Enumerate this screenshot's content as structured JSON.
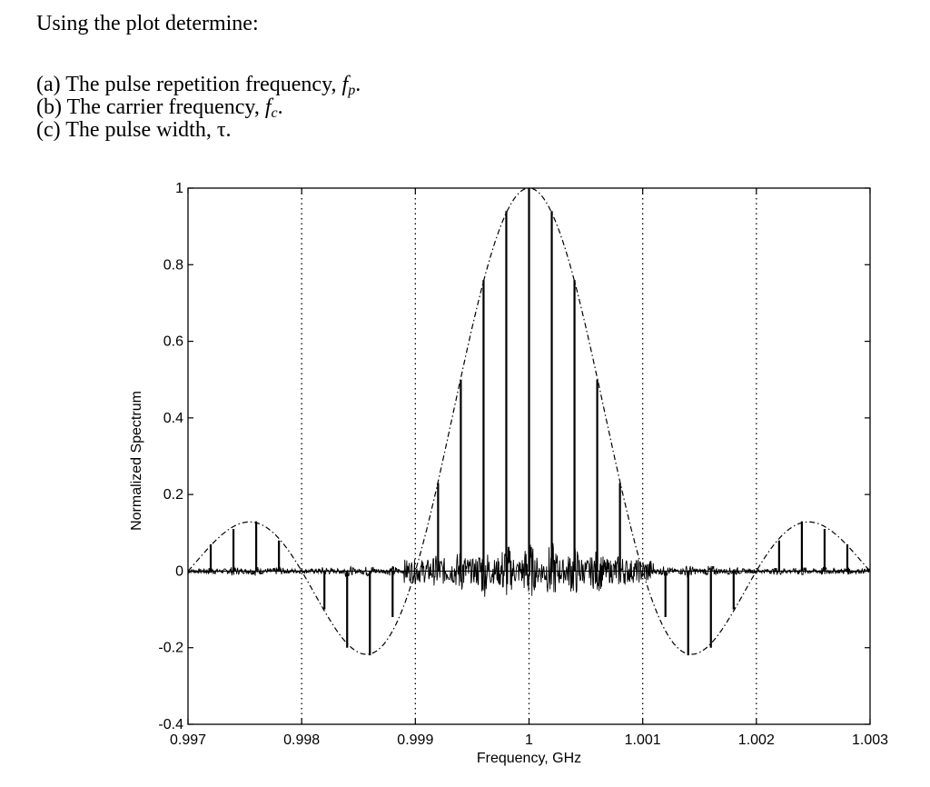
{
  "question": {
    "intro": "Using the plot determine:",
    "items": [
      {
        "text": "(a) The pulse repetition frequency, ",
        "symbol": "f",
        "sub": "p",
        "end": "."
      },
      {
        "text": "(b) The carrier frequency, ",
        "symbol": "f",
        "sub": "c",
        "end": "."
      },
      {
        "text": "(c) The pulse width, τ.",
        "symbol": "",
        "sub": "",
        "end": ""
      }
    ]
  },
  "chart_data": {
    "type": "line",
    "title": "",
    "xlabel": "Frequency, GHz",
    "ylabel": "Normalized Spectrum",
    "xlim": [
      0.997,
      1.003
    ],
    "ylim": [
      -0.4,
      1
    ],
    "xticks": [
      "0.997",
      "0.998",
      "0.999",
      "1",
      "1.001",
      "1.002",
      "1.003"
    ],
    "yticks": [
      "1",
      "0.8",
      "0.6",
      "0.4",
      "0.2",
      "0",
      "-0.2",
      "-0.4"
    ],
    "grid": "vertical dotted lines at x ticks",
    "envelope": {
      "style": "dash-dot",
      "function": "sinc",
      "center": 1.0,
      "first_null_offset": 0.001,
      "peak": 1.0
    },
    "spectral_lines": {
      "spacing": 0.0002,
      "x": [
        0.9972,
        0.9974,
        0.9976,
        0.9978,
        0.9982,
        0.9984,
        0.9986,
        0.9988,
        0.9992,
        0.9994,
        0.9996,
        0.9998,
        1.0,
        1.0002,
        1.0004,
        1.0006,
        1.0008,
        1.0012,
        1.0014,
        1.0016,
        1.0018,
        1.0022,
        1.0024,
        1.0026,
        1.0028
      ],
      "y": [
        0.07,
        0.11,
        0.13,
        0.08,
        -0.1,
        -0.2,
        -0.22,
        -0.12,
        0.23,
        0.5,
        0.76,
        0.94,
        1.0,
        0.94,
        0.76,
        0.5,
        0.23,
        -0.12,
        -0.22,
        -0.2,
        -0.1,
        0.08,
        0.13,
        0.11,
        0.07
      ]
    }
  }
}
